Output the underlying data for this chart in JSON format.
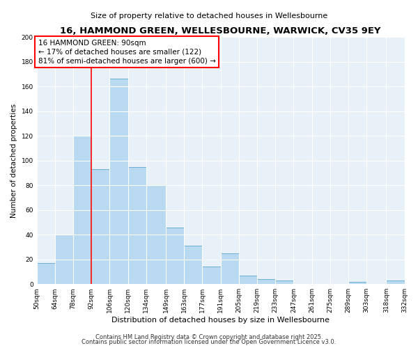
{
  "title": "16, HAMMOND GREEN, WELLESBOURNE, WARWICK, CV35 9EY",
  "subtitle": "Size of property relative to detached houses in Wellesbourne",
  "xlabel": "Distribution of detached houses by size in Wellesbourne",
  "ylabel": "Number of detached properties",
  "bin_edges": [
    50,
    64,
    78,
    92,
    106,
    120,
    134,
    149,
    163,
    177,
    191,
    205,
    219,
    233,
    247,
    261,
    275,
    289,
    303,
    318,
    332
  ],
  "bar_heights": [
    17,
    40,
    120,
    93,
    166,
    95,
    80,
    46,
    31,
    14,
    25,
    7,
    4,
    3,
    0,
    0,
    0,
    2,
    0,
    3
  ],
  "bar_color": "#b8d9f0",
  "bar_edge_color": "#6aaed6",
  "vline_x": 92,
  "vline_color": "red",
  "ylim": [
    0,
    200
  ],
  "yticks": [
    0,
    20,
    40,
    60,
    80,
    100,
    120,
    140,
    160,
    180,
    200
  ],
  "ann_line1": "16 HAMMOND GREEN: 90sqm",
  "ann_line2": "← 17% of detached houses are smaller (122)",
  "ann_line3": "81% of semi-detached houses are larger (600) →",
  "footer1": "Contains HM Land Registry data © Crown copyright and database right 2025.",
  "footer2": "Contains public sector information licensed under the Open Government Licence v3.0.",
  "bg_color": "#ffffff",
  "plot_bg_color": "#e8f1f8",
  "grid_color": "#ffffff",
  "title_fontsize": 9.5,
  "subtitle_fontsize": 8,
  "ylabel_fontsize": 7.5,
  "xlabel_fontsize": 8,
  "tick_fontsize": 6.5,
  "ann_fontsize": 7.5,
  "footer_fontsize": 6
}
